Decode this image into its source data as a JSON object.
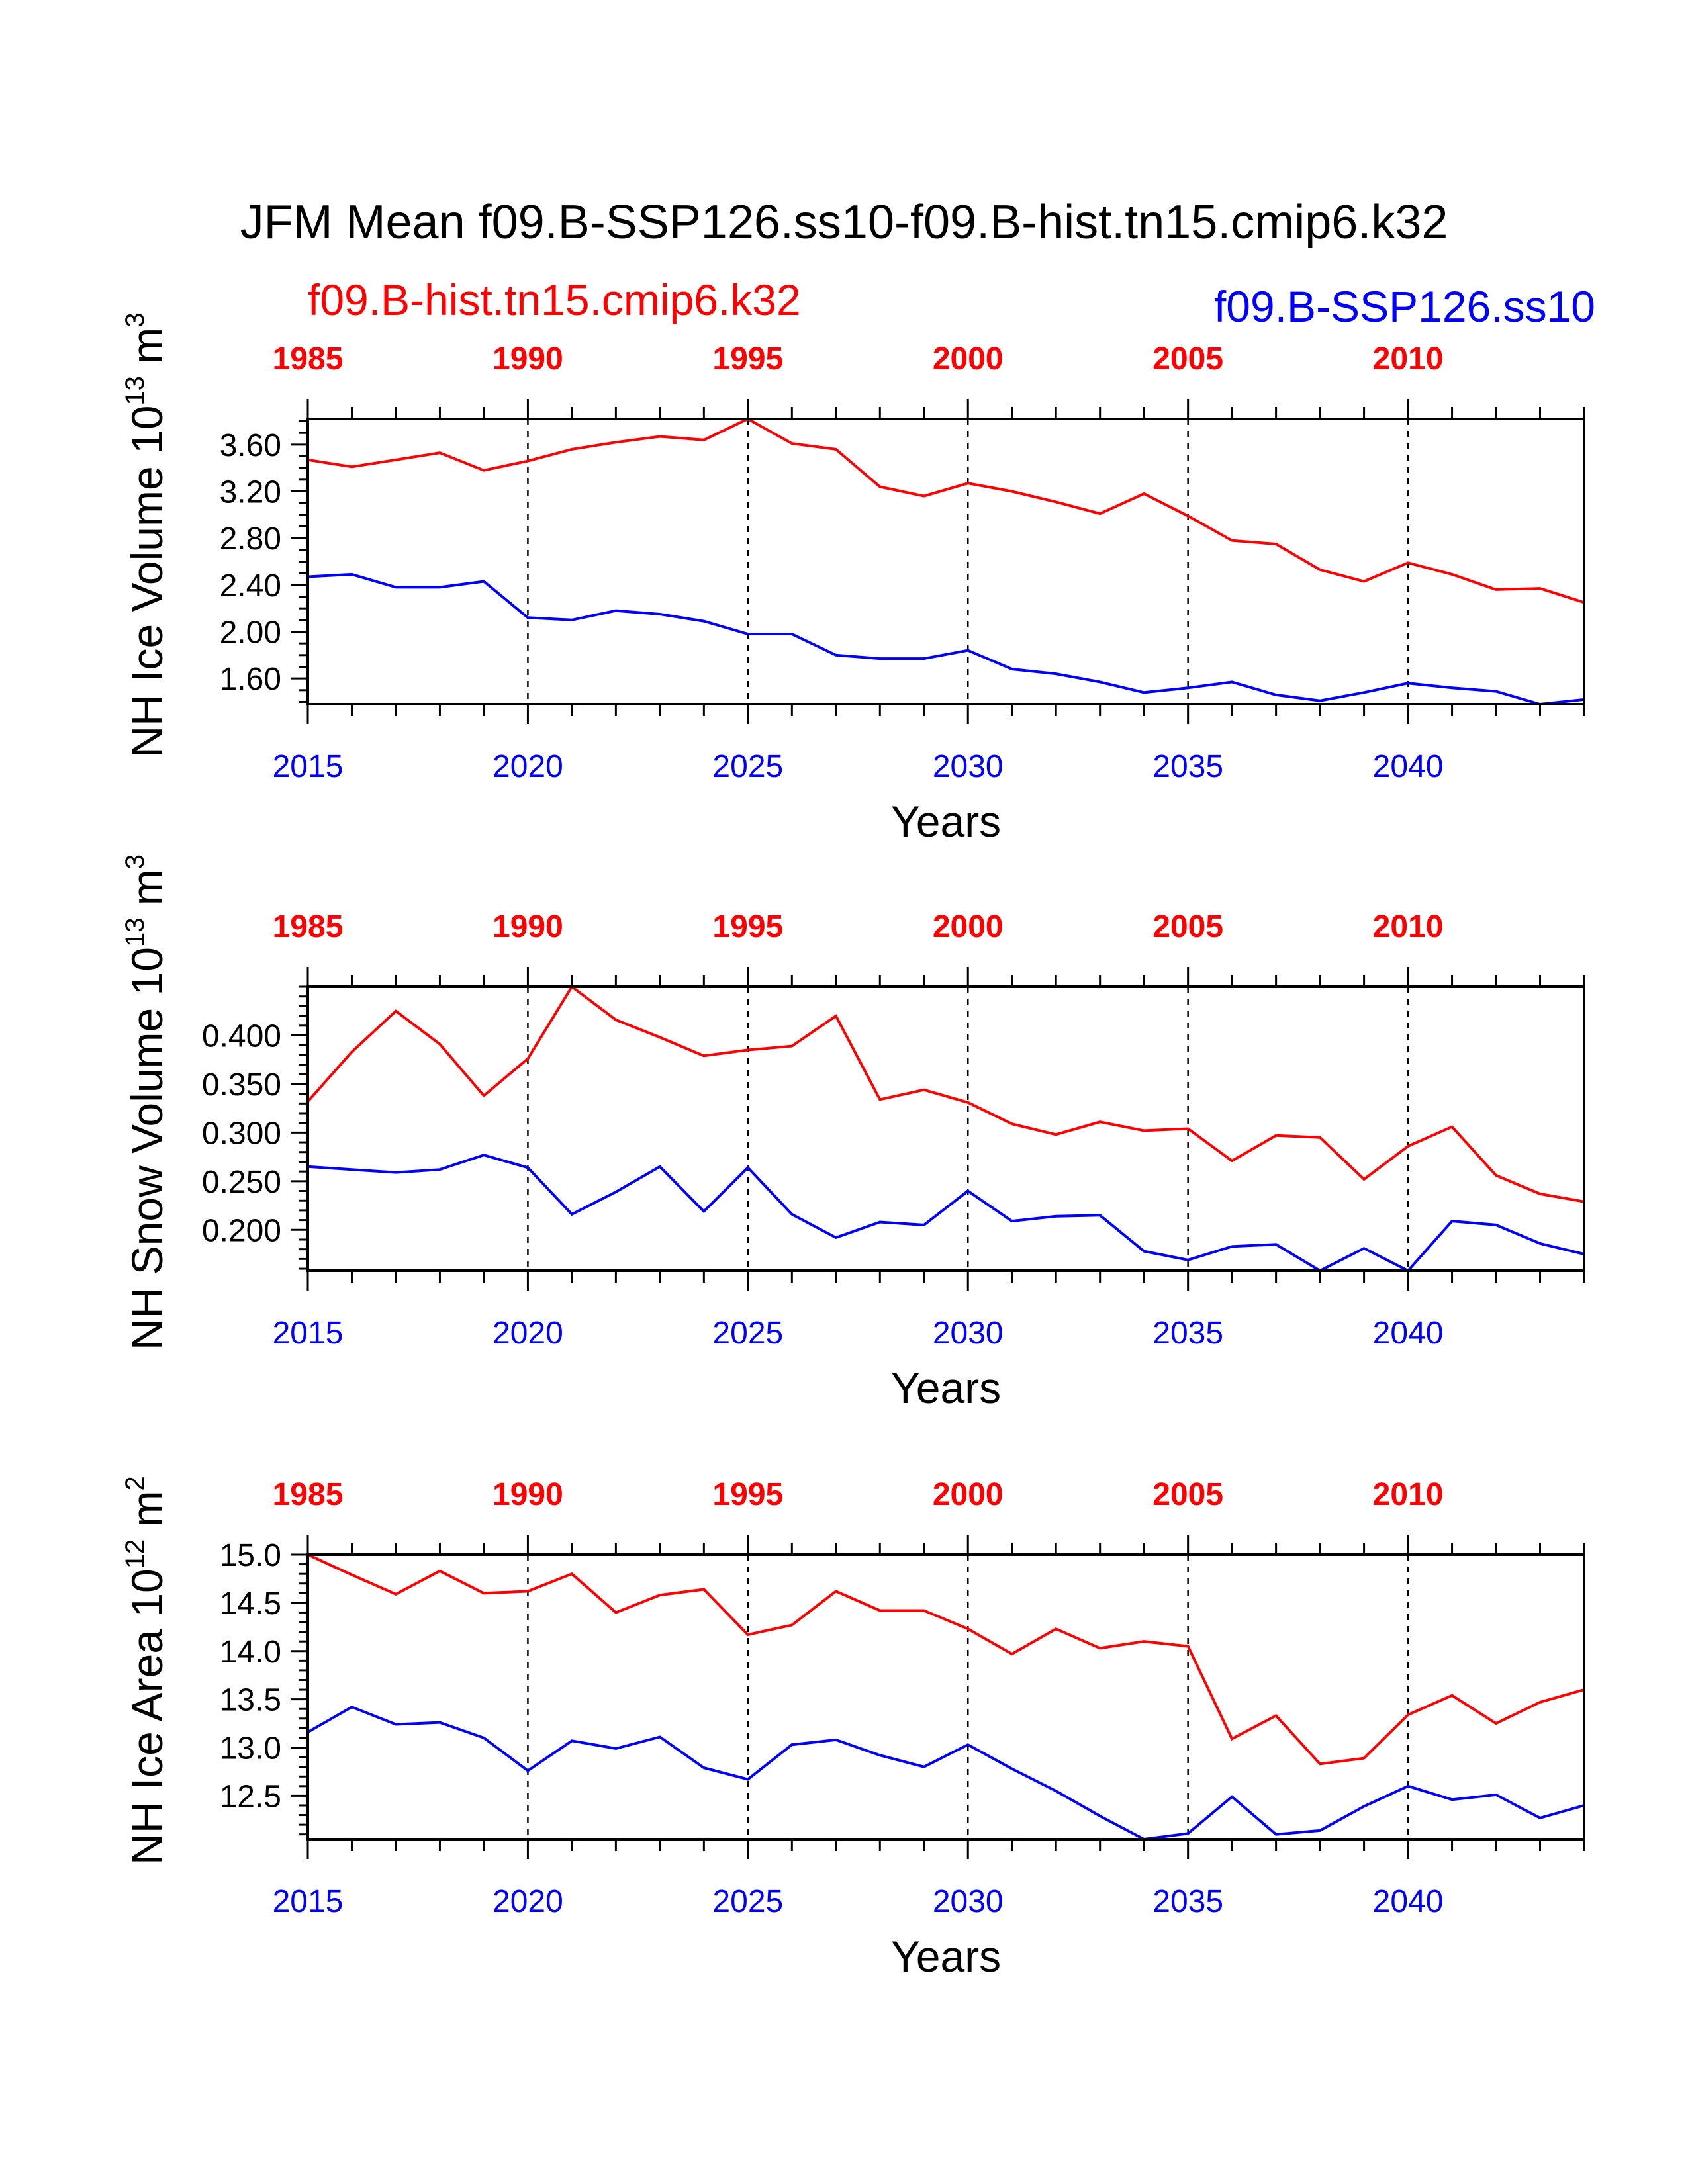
{
  "title": "JFM Mean f09.B-SSP126.ss10-f09.B-hist.tn15.cmip6.k32",
  "legend": {
    "hist_label": "f09.B-hist.tn15.cmip6.k32",
    "ssp_label": "f09.B-SSP126.ss10"
  },
  "colors": {
    "hist": "#ff0000",
    "ssp": "#0000ff",
    "axis": "#000000"
  },
  "chart_data": [
    {
      "type": "line",
      "ylabel": "NH Ice Volume",
      "ylabel_exp": "13",
      "ylabel_unit": "3",
      "xlabel": "Years",
      "grid": "dashed vertical lines every 5 years",
      "xlim_bottom": [
        2015,
        2044
      ],
      "xlim_top": [
        1985,
        2014
      ],
      "ylim": [
        1.38,
        3.82
      ],
      "yticks": [
        1.6,
        2.0,
        2.4,
        2.8,
        3.2,
        3.6
      ],
      "ytick_labels": [
        "1.60",
        "2.00",
        "2.40",
        "2.80",
        "3.20",
        "3.60"
      ],
      "minor_step": 0.1,
      "xticks_bottom": [
        2015,
        2020,
        2025,
        2030,
        2035,
        2040
      ],
      "xticks_top": [
        1985,
        1990,
        1995,
        2000,
        2005,
        2010
      ],
      "series": [
        {
          "name": "f09.B-hist.tn15.cmip6.k32",
          "axis": "top",
          "x_start": 1985,
          "values": [
            3.47,
            3.41,
            3.47,
            3.53,
            3.38,
            3.46,
            3.56,
            3.62,
            3.67,
            3.64,
            3.82,
            3.61,
            3.56,
            3.24,
            3.16,
            3.27,
            3.2,
            3.11,
            3.01,
            3.18,
            2.99,
            2.78,
            2.75,
            2.53,
            2.43,
            2.59,
            2.49,
            2.36,
            2.37,
            2.25
          ]
        },
        {
          "name": "f09.B-SSP126.ss10",
          "axis": "bottom",
          "x_start": 2015,
          "values": [
            2.47,
            2.49,
            2.38,
            2.38,
            2.43,
            2.12,
            2.1,
            2.18,
            2.15,
            2.09,
            1.98,
            1.98,
            1.8,
            1.77,
            1.77,
            1.84,
            1.68,
            1.64,
            1.57,
            1.48,
            1.52,
            1.57,
            1.46,
            1.41,
            1.48,
            1.56,
            1.52,
            1.49,
            1.38,
            1.42
          ]
        }
      ]
    },
    {
      "type": "line",
      "ylabel": "NH Snow Volume",
      "ylabel_exp": "13",
      "ylabel_unit": "3",
      "xlabel": "Years",
      "grid": "dashed vertical lines every 5 years",
      "xlim_bottom": [
        2015,
        2044
      ],
      "xlim_top": [
        1985,
        2014
      ],
      "ylim": [
        0.158,
        0.45
      ],
      "yticks": [
        0.2,
        0.25,
        0.3,
        0.35,
        0.4
      ],
      "ytick_labels": [
        "0.200",
        "0.250",
        "0.300",
        "0.350",
        "0.400"
      ],
      "minor_step": 0.01,
      "xticks_bottom": [
        2015,
        2020,
        2025,
        2030,
        2035,
        2040
      ],
      "xticks_top": [
        1985,
        1990,
        1995,
        2000,
        2005,
        2010
      ],
      "series": [
        {
          "name": "f09.B-hist.tn15.cmip6.k32",
          "axis": "top",
          "x_start": 1985,
          "values": [
            0.332,
            0.383,
            0.425,
            0.391,
            0.338,
            0.376,
            0.45,
            0.416,
            0.398,
            0.379,
            0.385,
            0.389,
            0.42,
            0.334,
            0.344,
            0.331,
            0.309,
            0.298,
            0.311,
            0.302,
            0.304,
            0.271,
            0.297,
            0.295,
            0.252,
            0.286,
            0.306,
            0.256,
            0.237,
            0.229
          ]
        },
        {
          "name": "f09.B-SSP126.ss10",
          "axis": "bottom",
          "x_start": 2015,
          "values": [
            0.265,
            0.262,
            0.259,
            0.262,
            0.277,
            0.264,
            0.216,
            0.239,
            0.265,
            0.219,
            0.264,
            0.216,
            0.192,
            0.208,
            0.205,
            0.24,
            0.209,
            0.214,
            0.215,
            0.178,
            0.169,
            0.183,
            0.185,
            0.158,
            0.181,
            0.158,
            0.209,
            0.205,
            0.186,
            0.175
          ]
        }
      ]
    },
    {
      "type": "line",
      "ylabel": "NH Ice Area",
      "ylabel_exp": "12",
      "ylabel_unit": "2",
      "xlabel": "Years",
      "grid": "dashed vertical lines every 5 years",
      "xlim_bottom": [
        2015,
        2044
      ],
      "xlim_top": [
        1985,
        2014
      ],
      "ylim": [
        12.05,
        15.0
      ],
      "yticks": [
        12.5,
        13.0,
        13.5,
        14.0,
        14.5,
        15.0
      ],
      "ytick_labels": [
        "12.5",
        "13.0",
        "13.5",
        "14.0",
        "14.5",
        "15.0"
      ],
      "minor_step": 0.1,
      "xticks_bottom": [
        2015,
        2020,
        2025,
        2030,
        2035,
        2040
      ],
      "xticks_top": [
        1985,
        1990,
        1995,
        2000,
        2005,
        2010
      ],
      "series": [
        {
          "name": "f09.B-hist.tn15.cmip6.k32",
          "axis": "top",
          "x_start": 1985,
          "values": [
            15.0,
            14.79,
            14.59,
            14.83,
            14.6,
            14.62,
            14.8,
            14.4,
            14.58,
            14.64,
            14.17,
            14.27,
            14.62,
            14.42,
            14.42,
            14.23,
            13.97,
            14.23,
            14.03,
            14.1,
            14.05,
            13.09,
            13.33,
            12.83,
            12.89,
            13.34,
            13.54,
            13.25,
            13.47,
            13.6
          ]
        },
        {
          "name": "f09.B-SSP126.ss10",
          "axis": "bottom",
          "x_start": 2015,
          "values": [
            13.16,
            13.42,
            13.24,
            13.26,
            13.1,
            12.76,
            13.07,
            12.99,
            13.11,
            12.79,
            12.67,
            13.03,
            13.08,
            12.92,
            12.8,
            13.03,
            12.78,
            12.55,
            12.29,
            12.05,
            12.11,
            12.49,
            12.1,
            12.14,
            12.39,
            12.6,
            12.46,
            12.51,
            12.27,
            12.4
          ]
        }
      ]
    }
  ]
}
